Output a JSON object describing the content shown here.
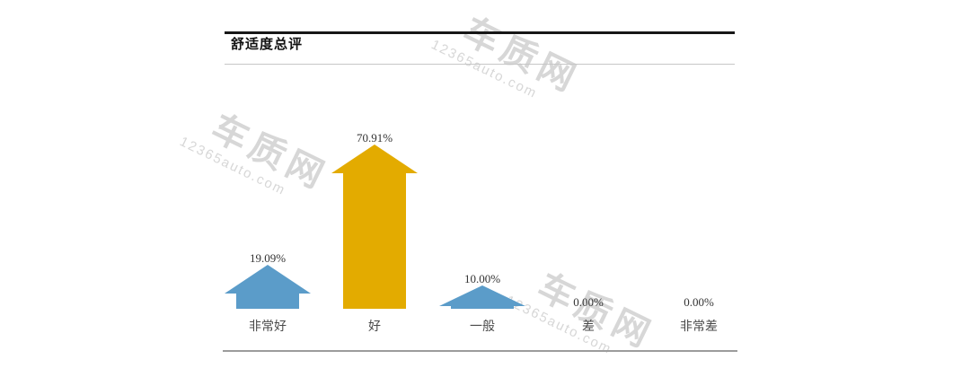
{
  "report": {
    "section_title": "舒适度总评"
  },
  "watermark": {
    "cn": "车质网",
    "en": "12365auto.com",
    "color": "#d7d7d7"
  },
  "chart_data": {
    "type": "bar",
    "bar_style": "upward-arrow-pictogram",
    "title": "舒适度总评",
    "categories": [
      "非常好",
      "好",
      "一般",
      "差",
      "非常差"
    ],
    "values": [
      19.09,
      70.91,
      10.0,
      0.0,
      0.0
    ],
    "value_labels": [
      "19.09%",
      "70.91%",
      "10.00%",
      "0.00%",
      "0.00%"
    ],
    "unit": "%",
    "xlabel": "",
    "ylabel": "",
    "ylim": [
      0,
      80
    ],
    "grid": "off",
    "legend": "none",
    "highlight_index": 1,
    "colors": {
      "highlight": "#e3ab00",
      "normal": "#5b9cc9",
      "value_label": "#333333",
      "category_label": "#4a4a4a"
    }
  }
}
